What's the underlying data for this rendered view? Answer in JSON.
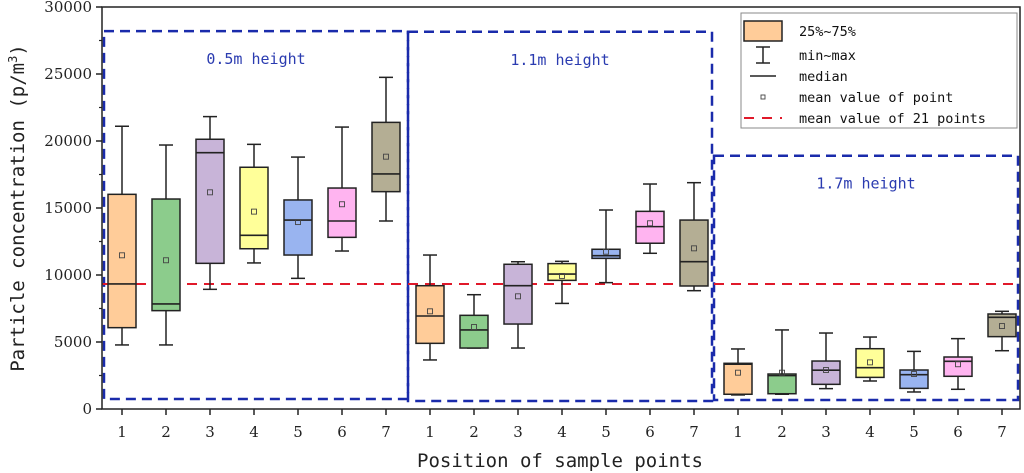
{
  "chart_data": {
    "type": "box",
    "title": "",
    "xlabel": "Position of sample points",
    "ylabel": "Particle concentration (p/m",
    "ylabel_superscript": "3",
    "ylabel_suffix": ")",
    "ylim": [
      0,
      30000
    ],
    "yticks": [
      0,
      5000,
      10000,
      15000,
      20000,
      25000,
      30000
    ],
    "grid": false,
    "legend_position": "top-right",
    "overall_mean": 9330,
    "legend": [
      {
        "key": "box",
        "label": "25%~75%"
      },
      {
        "key": "whisker",
        "label": "min~max"
      },
      {
        "key": "median",
        "label": "median"
      },
      {
        "key": "mean",
        "label": "mean value of point"
      },
      {
        "key": "overall-mean",
        "label": "mean value of 21 points"
      }
    ],
    "colors": {
      "1": "#ffcc99",
      "2": "#8ccc8c",
      "3": "#c8b4d8",
      "4": "#ffff99",
      "5": "#99b4f0",
      "6": "#ffb4f0",
      "7": "#b4ae94",
      "region": "#1a2bab",
      "overall_mean_line": "#e0192a"
    },
    "groups": [
      {
        "label": "0.5m height",
        "region_top": 28200,
        "boxes": [
          {
            "category": "1",
            "min": 4780,
            "q1": 6070,
            "median": 9330,
            "q3": 16020,
            "max": 21100,
            "mean": 11470
          },
          {
            "category": "2",
            "min": 4780,
            "q1": 7340,
            "median": 7840,
            "q3": 15670,
            "max": 19700,
            "mean": 11100
          },
          {
            "category": "3",
            "min": 8930,
            "q1": 10870,
            "median": 19130,
            "q3": 20130,
            "max": 21820,
            "mean": 16170
          },
          {
            "category": "4",
            "min": 10900,
            "q1": 11960,
            "median": 12960,
            "q3": 18040,
            "max": 19750,
            "mean": 14730
          },
          {
            "category": "5",
            "min": 9750,
            "q1": 11490,
            "median": 14100,
            "q3": 15600,
            "max": 18800,
            "mean": 13950
          },
          {
            "category": "6",
            "min": 11790,
            "q1": 12810,
            "median": 14030,
            "q3": 16490,
            "max": 21040,
            "mean": 15280
          },
          {
            "category": "7",
            "min": 14030,
            "q1": 16220,
            "median": 17540,
            "q3": 21390,
            "max": 24750,
            "mean": 18830
          }
        ]
      },
      {
        "label": "1.1m height",
        "region_top": 28150,
        "boxes": [
          {
            "category": "1",
            "min": 3660,
            "q1": 4900,
            "median": 6940,
            "q3": 9200,
            "max": 11490,
            "mean": 7290
          },
          {
            "category": "2",
            "min": 4550,
            "q1": 4550,
            "median": 5900,
            "q3": 6990,
            "max": 8530,
            "mean": 6120
          },
          {
            "category": "3",
            "min": 4550,
            "q1": 6340,
            "median": 9200,
            "q3": 10800,
            "max": 10990,
            "mean": 8410
          },
          {
            "category": "4",
            "min": 7880,
            "q1": 9600,
            "median": 10070,
            "q3": 10850,
            "max": 11020,
            "mean": 9930
          },
          {
            "category": "5",
            "min": 9430,
            "q1": 11240,
            "median": 11440,
            "q3": 11920,
            "max": 14850,
            "mean": 11740
          },
          {
            "category": "6",
            "min": 11620,
            "q1": 12370,
            "median": 13610,
            "q3": 14750,
            "max": 16790,
            "mean": 13860
          },
          {
            "category": "7",
            "min": 8830,
            "q1": 9180,
            "median": 10990,
            "q3": 14100,
            "max": 16890,
            "mean": 11990
          }
        ]
      },
      {
        "label": "1.7m height",
        "region_top": 18900,
        "boxes": [
          {
            "category": "1",
            "min": 1050,
            "q1": 1100,
            "median": 3340,
            "q3": 3410,
            "max": 4480,
            "mean": 2710
          },
          {
            "category": "2",
            "min": 1100,
            "q1": 1140,
            "median": 2490,
            "q3": 2610,
            "max": 5900,
            "mean": 2710
          },
          {
            "category": "3",
            "min": 1520,
            "q1": 1840,
            "median": 2900,
            "q3": 3580,
            "max": 5670,
            "mean": 2910
          },
          {
            "category": "4",
            "min": 2090,
            "q1": 2360,
            "median": 3080,
            "q3": 4500,
            "max": 5370,
            "mean": 3480
          },
          {
            "category": "5",
            "min": 1270,
            "q1": 1540,
            "median": 2560,
            "q3": 2910,
            "max": 4300,
            "mean": 2610
          },
          {
            "category": "6",
            "min": 1470,
            "q1": 2440,
            "median": 3560,
            "q3": 3880,
            "max": 5250,
            "mean": 3340
          },
          {
            "category": "7",
            "min": 4350,
            "q1": 5400,
            "median": 6840,
            "q3": 7090,
            "max": 7290,
            "mean": 6190
          }
        ]
      }
    ]
  }
}
